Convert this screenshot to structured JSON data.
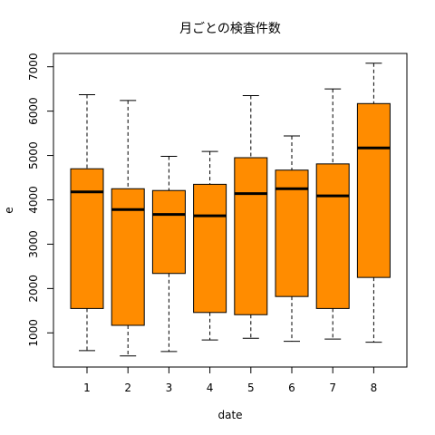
{
  "chart_data": {
    "type": "boxplot",
    "title": "月ごとの検査件数",
    "xlabel": "date",
    "ylabel": "e",
    "categories": [
      "1",
      "2",
      "3",
      "4",
      "5",
      "6",
      "7",
      "8"
    ],
    "y_ticks": [
      1000,
      2000,
      3000,
      4000,
      5000,
      6000,
      7000
    ],
    "y_tick_labels": [
      "1000",
      "2000",
      "3000",
      "4000",
      "5000",
      "6000",
      "7000"
    ],
    "ylim": [
      230,
      7300
    ],
    "box_color": "#FF8C00",
    "boxes": [
      {
        "min": 600,
        "q1": 1550,
        "median": 4180,
        "q3": 4700,
        "max": 6370
      },
      {
        "min": 480,
        "q1": 1170,
        "median": 3780,
        "q3": 4250,
        "max": 6240
      },
      {
        "min": 580,
        "q1": 2340,
        "median": 3670,
        "q3": 4210,
        "max": 4980
      },
      {
        "min": 840,
        "q1": 1460,
        "median": 3640,
        "q3": 4350,
        "max": 5090
      },
      {
        "min": 880,
        "q1": 1410,
        "median": 4140,
        "q3": 4950,
        "max": 6350
      },
      {
        "min": 810,
        "q1": 1820,
        "median": 4250,
        "q3": 4670,
        "max": 5440
      },
      {
        "min": 860,
        "q1": 1550,
        "median": 4090,
        "q3": 4810,
        "max": 6500
      },
      {
        "min": 790,
        "q1": 2250,
        "median": 5170,
        "q3": 6170,
        "max": 7080
      }
    ]
  }
}
